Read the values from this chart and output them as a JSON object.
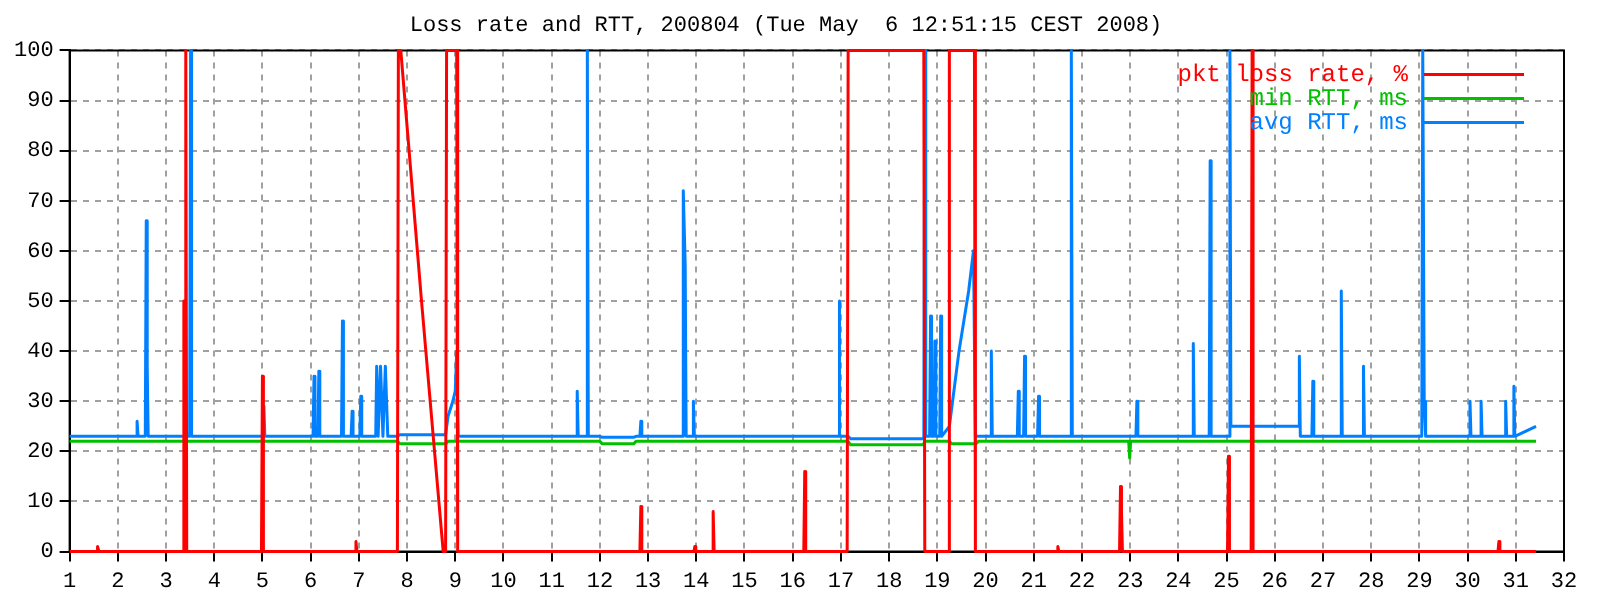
{
  "chart_data": {
    "type": "line",
    "title": "Loss rate and RTT, 200804 (Tue May  6 12:51:15 CEST 2008)",
    "xlim": [
      1,
      32
    ],
    "xticks": [
      1,
      2,
      3,
      4,
      5,
      6,
      7,
      8,
      9,
      10,
      11,
      12,
      13,
      14,
      15,
      16,
      17,
      18,
      19,
      20,
      21,
      22,
      23,
      24,
      25,
      26,
      27,
      28,
      29,
      30,
      31,
      32
    ],
    "ylim": [
      0,
      100
    ],
    "yticks": [
      0,
      10,
      20,
      30,
      40,
      50,
      60,
      70,
      80,
      90,
      100
    ],
    "grid": true,
    "legend": "top right",
    "marker": "none",
    "line_style": "solid",
    "series": [
      {
        "name": "pkt loss rate, %",
        "color": "#ff0000",
        "x": [
          1,
          1.55,
          1.58,
          1.61,
          3.35,
          3.37,
          3.39,
          3.41,
          3.43,
          4.98,
          5.0,
          5.02,
          6.92,
          6.94,
          6.96,
          7.8,
          7.82,
          7.87,
          8.3,
          8.75,
          8.8,
          8.82,
          9.03,
          9.05,
          12.83,
          12.85,
          12.87,
          13.95,
          13.97,
          13.99,
          14.33,
          14.35,
          14.37,
          16.23,
          16.25,
          16.27,
          17.13,
          17.15,
          18.72,
          18.74,
          19.23,
          19.25,
          19.77,
          19.79,
          21.48,
          21.5,
          21.52,
          22.78,
          22.8,
          22.82,
          22.84,
          25.02,
          25.04,
          25.06,
          25.51,
          25.53,
          25.55,
          30.63,
          30.65,
          30.67,
          31.42
        ],
        "values": [
          0,
          0,
          1,
          0,
          0,
          50,
          0,
          100,
          0,
          0,
          35,
          0,
          0,
          2,
          0,
          0,
          100,
          100,
          50,
          0,
          0,
          100,
          100,
          0,
          0,
          9,
          0,
          0,
          1,
          0,
          0,
          8,
          0,
          0,
          16,
          0,
          0,
          100,
          100,
          0,
          0,
          100,
          100,
          0,
          0,
          1,
          0,
          0,
          13,
          8,
          0,
          0,
          19,
          0,
          0,
          100,
          0,
          0,
          2,
          0,
          0
        ]
      },
      {
        "name": "min RTT, ms",
        "color": "#00c000",
        "x": [
          1,
          7.8,
          7.85,
          8.8,
          8.85,
          12.0,
          12.05,
          12.7,
          12.75,
          17.15,
          17.2,
          18.7,
          18.75,
          19.25,
          19.3,
          19.8,
          19.85,
          22.97,
          22.99,
          23.01,
          31.42
        ],
        "values": [
          22,
          22,
          21.5,
          21.5,
          22,
          22,
          21.5,
          21.5,
          22,
          22,
          21.3,
          21.3,
          22,
          22,
          21.5,
          21.5,
          22,
          22,
          18.7,
          22,
          22
        ]
      },
      {
        "name": "avg RTT, ms",
        "color": "#0080ff",
        "x": [
          1,
          2.38,
          2.4,
          2.42,
          2.57,
          2.59,
          2.61,
          2.63,
          3.49,
          3.51,
          3.53,
          5.01,
          5.03,
          5.05,
          6.05,
          6.07,
          6.09,
          6.15,
          6.17,
          6.19,
          6.64,
          6.66,
          6.68,
          6.84,
          6.86,
          6.88,
          7.02,
          7.04,
          7.06,
          7.35,
          7.37,
          7.4,
          7.45,
          7.5,
          7.55,
          7.6,
          7.8,
          7.85,
          8.8,
          8.85,
          8.95,
          9.0,
          9.03,
          9.06,
          11.51,
          11.53,
          11.55,
          11.72,
          11.74,
          11.76,
          12.0,
          12.05,
          12.7,
          12.75,
          12.83,
          12.85,
          12.87,
          13.71,
          13.73,
          13.77,
          13.79,
          13.92,
          13.94,
          13.96,
          16.94,
          16.96,
          16.98,
          17.15,
          17.2,
          18.7,
          18.72,
          18.74,
          18.76,
          18.84,
          18.86,
          18.88,
          18.93,
          18.95,
          18.97,
          19.05,
          19.07,
          19.09,
          19.25,
          19.45,
          19.65,
          19.75,
          19.79,
          20.1,
          20.12,
          20.14,
          20.66,
          20.68,
          20.7,
          20.79,
          20.81,
          20.83,
          21.08,
          21.1,
          21.12,
          21.76,
          21.78,
          21.8,
          23.12,
          23.14,
          23.16,
          24.29,
          24.31,
          24.33,
          24.64,
          24.66,
          24.68,
          25.05,
          25.07,
          25.09,
          26.5,
          26.51,
          26.53,
          26.77,
          26.79,
          26.81,
          27.36,
          27.38,
          27.4,
          27.82,
          27.84,
          27.86,
          29.05,
          29.07,
          29.1,
          29.13,
          30.03,
          30.05,
          30.07,
          30.26,
          30.28,
          30.3,
          30.77,
          30.79,
          30.81,
          30.94,
          30.96,
          30.98,
          31.2,
          31.42
        ],
        "values": [
          23,
          23,
          26,
          23,
          23,
          66,
          37,
          23,
          23,
          100,
          23,
          23,
          29,
          23,
          23,
          35,
          23,
          23,
          36,
          23,
          23,
          46,
          23,
          23,
          28,
          23,
          23,
          31,
          23,
          23,
          37,
          23,
          37,
          23,
          37,
          23,
          23,
          23.3,
          23.3,
          27,
          30,
          32,
          40,
          23,
          23,
          32,
          23,
          23,
          100,
          23,
          23,
          22.8,
          22.8,
          23,
          23,
          26,
          23,
          23,
          72,
          57,
          23,
          23,
          30,
          23,
          23,
          50,
          23,
          23,
          22.5,
          22.5,
          23,
          100,
          23,
          23,
          47,
          23,
          23,
          42,
          23,
          23,
          47,
          23,
          25,
          40,
          52,
          60,
          23,
          23,
          40,
          23,
          23,
          32,
          23,
          23,
          39,
          23,
          23,
          31,
          23,
          23,
          100,
          23,
          23,
          30,
          23,
          23,
          41.5,
          23,
          23,
          78,
          23,
          23,
          100,
          25,
          25,
          39,
          23,
          23,
          34,
          23,
          23,
          52,
          23,
          23,
          37,
          23,
          23,
          100,
          30,
          23,
          23,
          30,
          23,
          23,
          30,
          23,
          23,
          30,
          23,
          23,
          33,
          23,
          24,
          25
        ]
      }
    ]
  }
}
